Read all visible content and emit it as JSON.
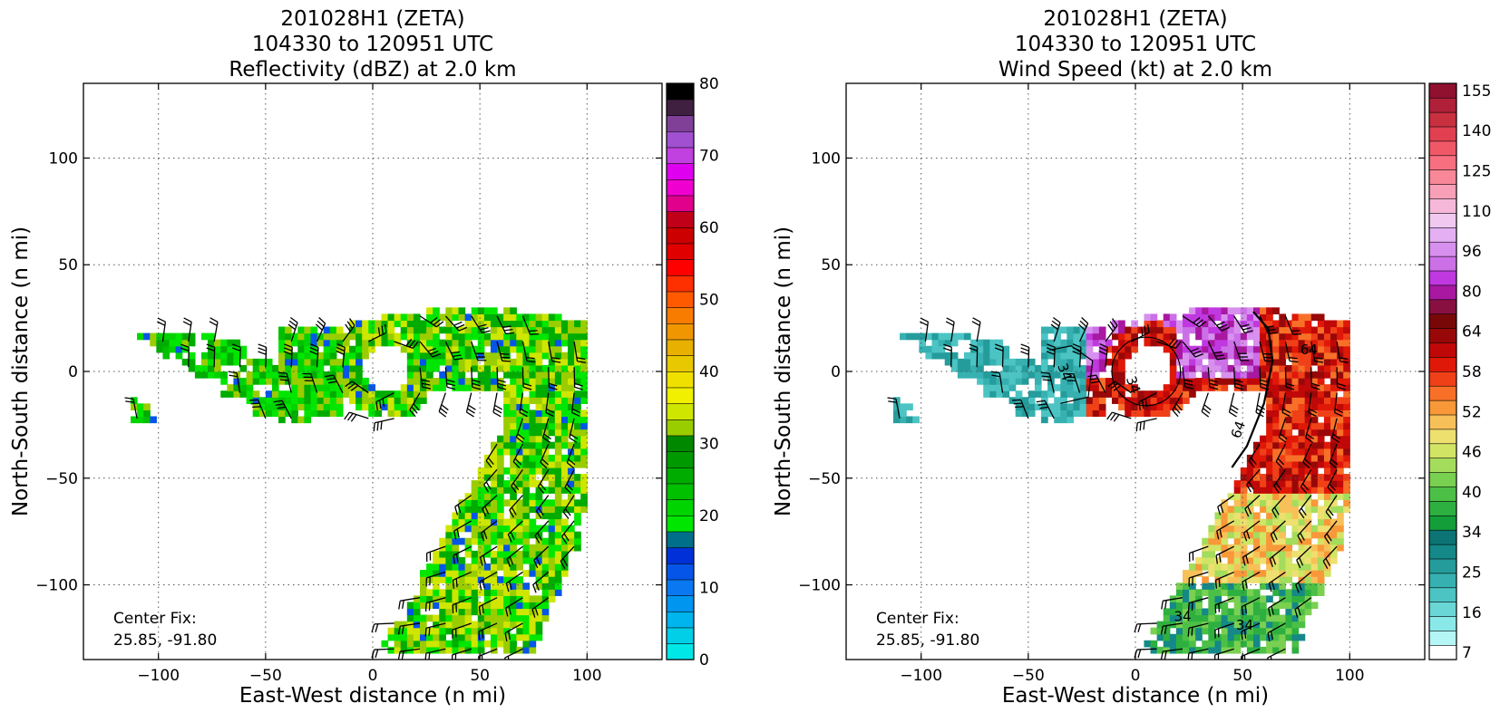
{
  "chart_data": [
    {
      "type": "heatmap",
      "title_lines": [
        "201028H1 (ZETA)",
        "104330 to 120951 UTC",
        "Reflectivity (dBZ) at 2.0 km"
      ],
      "xlabel": "East-West distance (n mi)",
      "ylabel": "North-South distance (n mi)",
      "xlim": [
        -135,
        135
      ],
      "ylim": [
        -135,
        135
      ],
      "xticks": [
        -100,
        -50,
        0,
        50,
        100
      ],
      "yticks": [
        -100,
        -50,
        0,
        50,
        100
      ],
      "xtick_labels": [
        "−100",
        "−50",
        "0",
        "50",
        "100"
      ],
      "ytick_labels": [
        "−100",
        "−50",
        "0",
        "50",
        "100"
      ],
      "grid": true,
      "annotation_lines": [
        "Center Fix:",
        "25.85, -91.80"
      ],
      "colorbar": {
        "min": 0,
        "max": 80,
        "tick_values": [
          0,
          10,
          20,
          30,
          40,
          50,
          60,
          70,
          80
        ],
        "tick_labels": [
          "0",
          "10",
          "20",
          "30",
          "40",
          "50",
          "60",
          "70",
          "80"
        ],
        "colors": [
          "#00e7e7",
          "#00cfe7",
          "#00b4ee",
          "#0096f0",
          "#0a78f0",
          "#0555e8",
          "#0030d8",
          "#00708a",
          "#00e600",
          "#00d400",
          "#00c000",
          "#00ac00",
          "#009a00",
          "#008800",
          "#9acd00",
          "#cfe600",
          "#f0f000",
          "#f0e000",
          "#e8c800",
          "#e8b000",
          "#f09600",
          "#f87c00",
          "#ff5a00",
          "#ff3000",
          "#ff0000",
          "#e00000",
          "#cc0000",
          "#c00018",
          "#e0008c",
          "#f000d0",
          "#e000f0",
          "#c040e0",
          "#a050d0",
          "#804098",
          "#402040",
          "#000000"
        ]
      },
      "features": {
        "eye_center": [
          5,
          0
        ],
        "eye_radius_nmi": 14,
        "description_series": [
          {
            "name": "main_band",
            "points": [
              [
                0,
                25
              ],
              [
                50,
                28
              ],
              [
                95,
                20
              ],
              [
                100,
                -10
              ],
              [
                90,
                -70
              ],
              [
                70,
                -110
              ],
              [
                45,
                -130
              ]
            ]
          },
          {
            "name": "western_fragments",
            "points": [
              [
                -110,
                15
              ],
              [
                -80,
                5
              ],
              [
                -60,
                -10
              ],
              [
                -30,
                5
              ]
            ]
          }
        ],
        "wind_barb_spacing_nmi": 12
      }
    },
    {
      "type": "heatmap",
      "title_lines": [
        "201028H1 (ZETA)",
        "104330 to 120951 UTC",
        "Wind Speed (kt) at 2.0 km"
      ],
      "xlabel": "East-West distance (n mi)",
      "ylabel": "North-South distance (n mi)",
      "xlim": [
        -135,
        135
      ],
      "ylim": [
        -135,
        135
      ],
      "xticks": [
        -100,
        -50,
        0,
        50,
        100
      ],
      "yticks": [
        -100,
        -50,
        0,
        50,
        100
      ],
      "xtick_labels": [
        "−100",
        "−50",
        "0",
        "50",
        "100"
      ],
      "ytick_labels": [
        "−100",
        "−50",
        "0",
        "50",
        "100"
      ],
      "grid": true,
      "annotation_lines": [
        "Center Fix:",
        "25.85, -91.80"
      ],
      "contour_labels": [
        {
          "text": "34",
          "x": -35,
          "y": -1
        },
        {
          "text": "34",
          "x": -3,
          "y": -7
        },
        {
          "text": "64",
          "x": 81,
          "y": 8
        },
        {
          "text": "64",
          "x": 50,
          "y": -28
        },
        {
          "text": "34",
          "x": 22,
          "y": -117
        },
        {
          "text": "34",
          "x": 51,
          "y": -121
        }
      ],
      "colorbar": {
        "tick_labels": [
          "7",
          "16",
          "25",
          "34",
          "40",
          "46",
          "52",
          "58",
          "64",
          "80",
          "96",
          "110",
          "125",
          "140",
          "155"
        ],
        "colors": [
          "#ffffff",
          "#b4f5f5",
          "#8ae8e8",
          "#6ad6d6",
          "#4cc4c4",
          "#36b0b0",
          "#259c9c",
          "#158888",
          "#0c7474",
          "#139e3a",
          "#2eb040",
          "#4cc046",
          "#7ad050",
          "#a4dc5c",
          "#d2e464",
          "#eee070",
          "#f8c058",
          "#f89838",
          "#f87028",
          "#f04018",
          "#e01808",
          "#c00808",
          "#980808",
          "#780808",
          "#881040",
          "#a818a0",
          "#c038e0",
          "#cc70e8",
          "#d890ee",
          "#e4b0f2",
          "#f0c8f0",
          "#f6b8d8",
          "#f8a0b8",
          "#f88898",
          "#f87080",
          "#f05868",
          "#e04050",
          "#c83040",
          "#b02038",
          "#901030"
        ]
      },
      "features": {
        "eye_center": [
          5,
          0
        ],
        "eye_radius_nmi": 12,
        "regions": [
          "eyewall_red_ring",
          "purple_64plus_core",
          "red_58_64_band",
          "yellow_green_tail",
          "teal_below_34"
        ]
      }
    }
  ]
}
